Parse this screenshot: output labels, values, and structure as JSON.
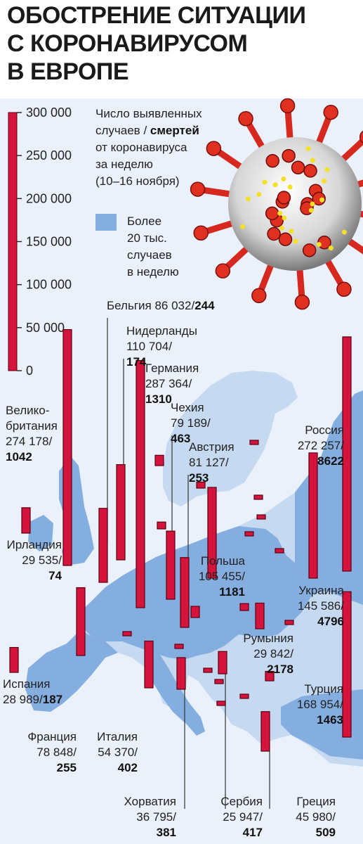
{
  "title_lines": [
    "ОБОСТРЕНИЕ СИТУАЦИИ",
    "С КОРОНАВИРУСОМ",
    "В ЕВРОПЕ"
  ],
  "legend": {
    "description_lines": [
      "Число выявленных",
      "случаев / ",
      "смертей",
      "от коронавируса",
      "за неделю",
      "(10–16 ноября)"
    ],
    "blue_lines": [
      "Более",
      "20 тыс.",
      "случаев",
      "в неделю"
    ]
  },
  "colors": {
    "bar": "#d4143c",
    "bar_outline": "#5a0010",
    "land_highlight": "#85aee0",
    "land": "#c5d9f1",
    "sea": "#eaf1fa"
  },
  "illustration": "coronavirus-particle",
  "chart_data": {
    "type": "bar",
    "unit_note": "Число выявленных случаев / смертей от коронавируса за неделю (10–16 ноября)",
    "ylim": [
      0,
      300000
    ],
    "scale_ticks": [
      "300 000",
      "250 000",
      "200 000",
      "150 000",
      "100 000",
      "50 000",
      "0"
    ],
    "scale_values": [
      300000,
      250000,
      200000,
      150000,
      100000,
      50000,
      0
    ],
    "countries": [
      {
        "name": "Бельгия",
        "cases": 86032,
        "deaths": 244,
        "cases_label": "86 032/",
        "deaths_label": "244"
      },
      {
        "name": "Нидерланды",
        "cases": 110704,
        "deaths": 174,
        "cases_label": "110 704/",
        "deaths_label": "174"
      },
      {
        "name": "Германия",
        "cases": 287364,
        "deaths": 1310,
        "cases_label": "287 364/",
        "deaths_label": "1310"
      },
      {
        "name": "Чехия",
        "cases": 79189,
        "deaths": 463,
        "cases_label": "79 189/",
        "deaths_label": "463"
      },
      {
        "name": "Австрия",
        "cases": 81127,
        "deaths": 253,
        "cases_label": "81 127/",
        "deaths_label": "253"
      },
      {
        "name": "Велико-британия",
        "name_lines": [
          "Велико-",
          "британия"
        ],
        "cases": 274178,
        "deaths": 1042,
        "cases_label": "274 178/",
        "deaths_label": "1042"
      },
      {
        "name": "Россия",
        "cases": 272257,
        "deaths": 8622,
        "cases_label": "272 257/",
        "deaths_label": "8622"
      },
      {
        "name": "Ирландия",
        "cases": 29535,
        "deaths": 74,
        "cases_label": "29 535/",
        "deaths_label": "74"
      },
      {
        "name": "Польша",
        "cases": 105455,
        "deaths": 1181,
        "cases_label": "105 455/",
        "deaths_label": "1181"
      },
      {
        "name": "Украина",
        "cases": 145586,
        "deaths": 4796,
        "cases_label": "145 586/",
        "deaths_label": "4796"
      },
      {
        "name": "Румыния",
        "cases": 29842,
        "deaths": 2178,
        "cases_label": "29 842/",
        "deaths_label": "2178"
      },
      {
        "name": "Испания",
        "cases": 28989,
        "deaths": 187,
        "cases_label": "28 989/",
        "deaths_label": "187"
      },
      {
        "name": "Турция",
        "cases": 168954,
        "deaths": 1463,
        "cases_label": "168 954/",
        "deaths_label": "1463"
      },
      {
        "name": "Франция",
        "cases": 78848,
        "deaths": 255,
        "cases_label": "78 848/",
        "deaths_label": "255"
      },
      {
        "name": "Италия",
        "cases": 54370,
        "deaths": 402,
        "cases_label": "54 370/",
        "deaths_label": "402"
      },
      {
        "name": "Хорватия",
        "cases": 36795,
        "deaths": 381,
        "cases_label": "36 795/",
        "deaths_label": "381"
      },
      {
        "name": "Сербия",
        "cases": 25947,
        "deaths": 417,
        "cases_label": "25 947/",
        "deaths_label": "417"
      },
      {
        "name": "Греция",
        "cases": 45980,
        "deaths": 509,
        "cases_label": "45 980/",
        "deaths_label": "509"
      }
    ],
    "unlabeled_bars": [
      {
        "cases": 12000
      },
      {
        "cases": 8000
      },
      {
        "cases": 7000
      },
      {
        "cases": 4000
      },
      {
        "cases": 3000
      },
      {
        "cases": 2500
      },
      {
        "cases": 2500
      },
      {
        "cases": 2000
      },
      {
        "cases": 1500
      },
      {
        "cases": 1500
      },
      {
        "cases": 13000
      },
      {
        "cases": 11000
      },
      {
        "cases": 8000
      },
      {
        "cases": 3000
      },
      {
        "cases": 2000
      },
      {
        "cases": 2000
      },
      {
        "cases": 1500
      },
      {
        "cases": 1500
      }
    ]
  }
}
